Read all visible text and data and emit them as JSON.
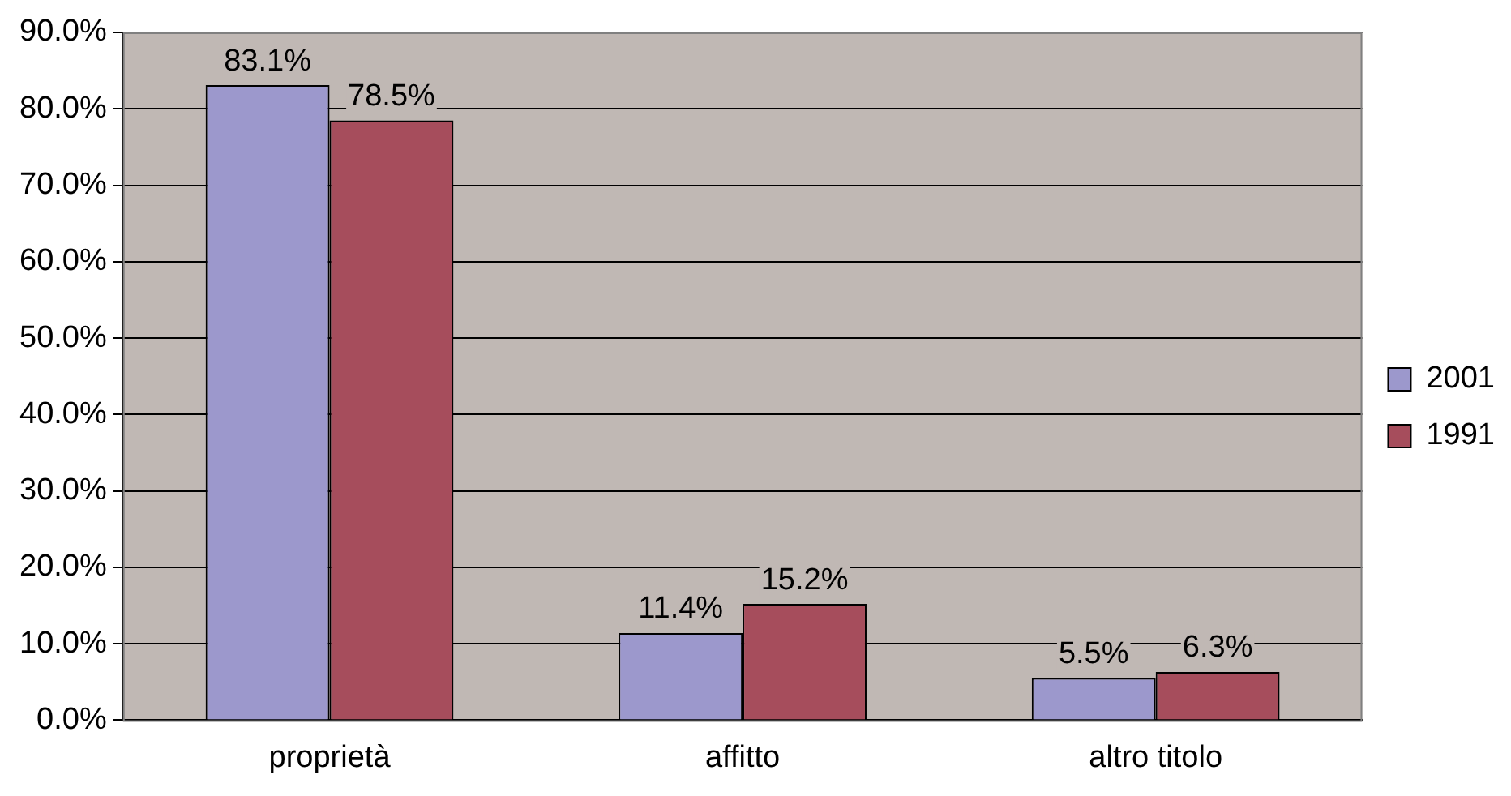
{
  "chart_data": {
    "type": "bar",
    "categories": [
      "proprietà",
      "affitto",
      "altro titolo"
    ],
    "series": [
      {
        "name": "2001",
        "color": "#9c98cc",
        "values": [
          83.1,
          11.4,
          5.5
        ],
        "value_labels": [
          "83.1%",
          "11.4%",
          "5.5%"
        ]
      },
      {
        "name": "1991",
        "color": "#a64d5c",
        "values": [
          78.5,
          15.2,
          6.3
        ],
        "value_labels": [
          "78.5%",
          "15.2%",
          "6.3%"
        ]
      }
    ],
    "ylim": [
      0,
      90
    ],
    "yticks": [
      {
        "value": 0,
        "label": "0.0%"
      },
      {
        "value": 10,
        "label": "10.0%"
      },
      {
        "value": 20,
        "label": "20.0%"
      },
      {
        "value": 30,
        "label": "30.0%"
      },
      {
        "value": 40,
        "label": "40.0%"
      },
      {
        "value": 50,
        "label": "50.0%"
      },
      {
        "value": 60,
        "label": "60.0%"
      },
      {
        "value": 70,
        "label": "70.0%"
      },
      {
        "value": 80,
        "label": "80.0%"
      },
      {
        "value": 90,
        "label": "90.0%"
      }
    ],
    "grid": "y",
    "legend": "right"
  }
}
